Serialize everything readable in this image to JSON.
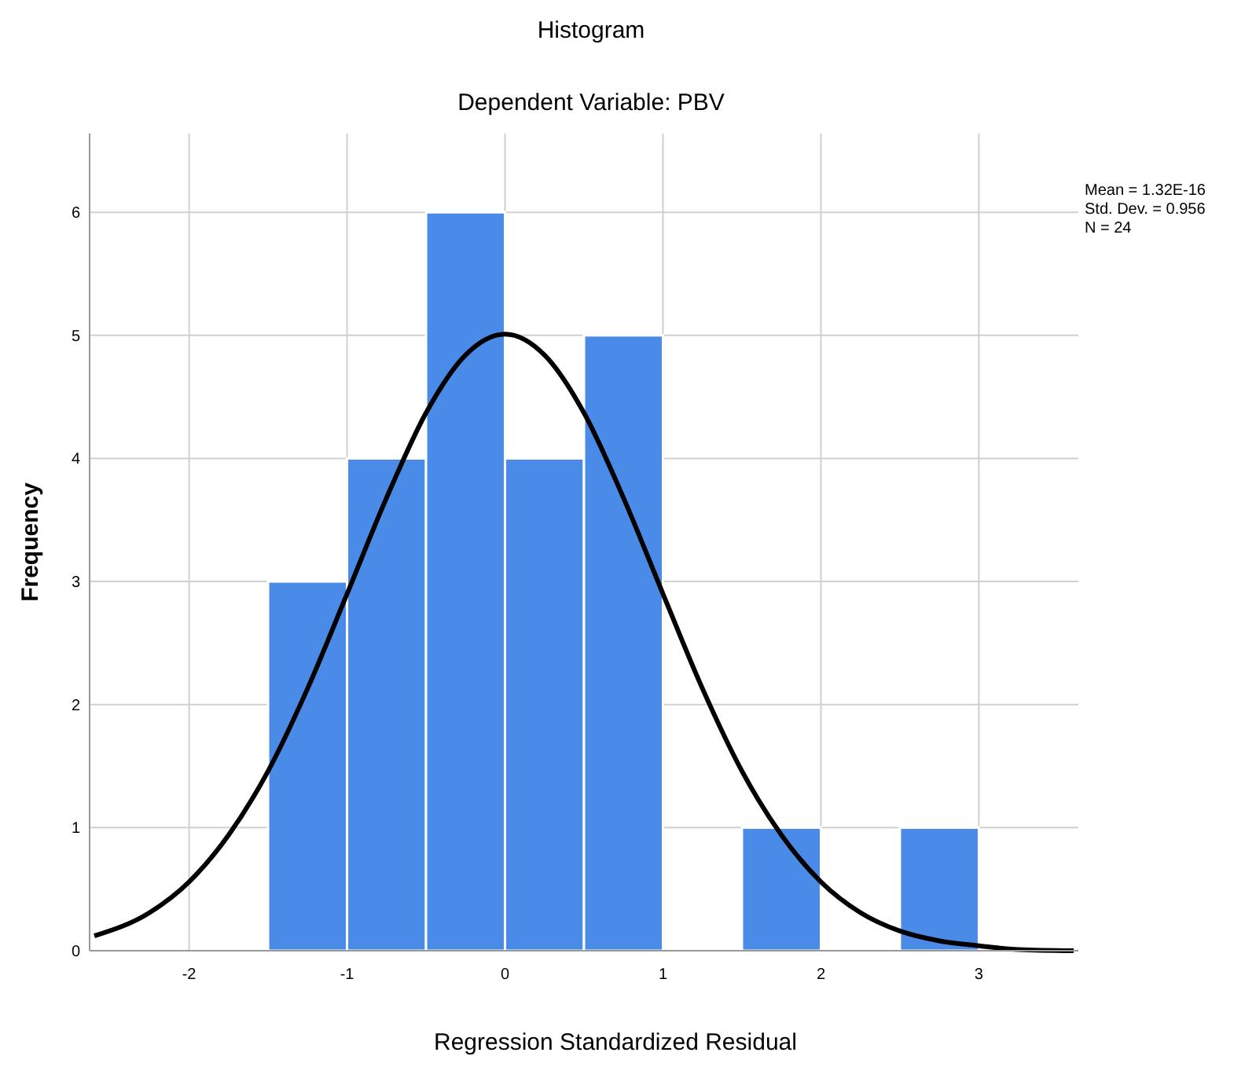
{
  "chart_data": {
    "type": "histogram",
    "title": "Histogram",
    "subtitle": "Dependent Variable: PBV",
    "xlabel": "Regression Standardized Residual",
    "ylabel": "Frequency",
    "bins": [
      -1.5,
      -1,
      -0.5,
      0,
      0.5,
      1,
      1.5,
      2,
      2.5,
      3
    ],
    "values": [
      3,
      4,
      6,
      4,
      5,
      0,
      1,
      0,
      1
    ],
    "color": "#4a8be8",
    "series": [
      {
        "type": "line",
        "color": "#000000",
        "x": [
          -2.6,
          -2.25,
          -2,
          -1.75,
          -1.5,
          -1.25,
          -1,
          -0.75,
          -0.5,
          -0.25,
          0,
          0.25,
          0.5,
          0.75,
          1,
          1.25,
          1.5,
          1.75,
          2,
          2.25,
          2.5,
          2.75,
          3,
          3.25,
          3.6
        ],
        "values": [
          0.12,
          0.31,
          0.56,
          0.94,
          1.46,
          2.13,
          2.9,
          3.68,
          4.37,
          4.84,
          5.01,
          4.84,
          4.37,
          3.68,
          2.9,
          2.13,
          1.46,
          0.94,
          0.56,
          0.31,
          0.16,
          0.08,
          0.04,
          0.01,
          0
        ]
      }
    ],
    "xlim": [
      -2.63,
      3.63
    ],
    "xticks": [
      -2,
      -1,
      0,
      1,
      2,
      3
    ],
    "ylim": [
      0,
      6.64
    ],
    "yticks": [
      0,
      1,
      2,
      3,
      4,
      5,
      6
    ],
    "grid": true,
    "line_style": "solid",
    "marker": "none",
    "annotations": [
      "Mean = 1.32E-16",
      "Std. Dev. = 0.956",
      "N = 24"
    ]
  }
}
